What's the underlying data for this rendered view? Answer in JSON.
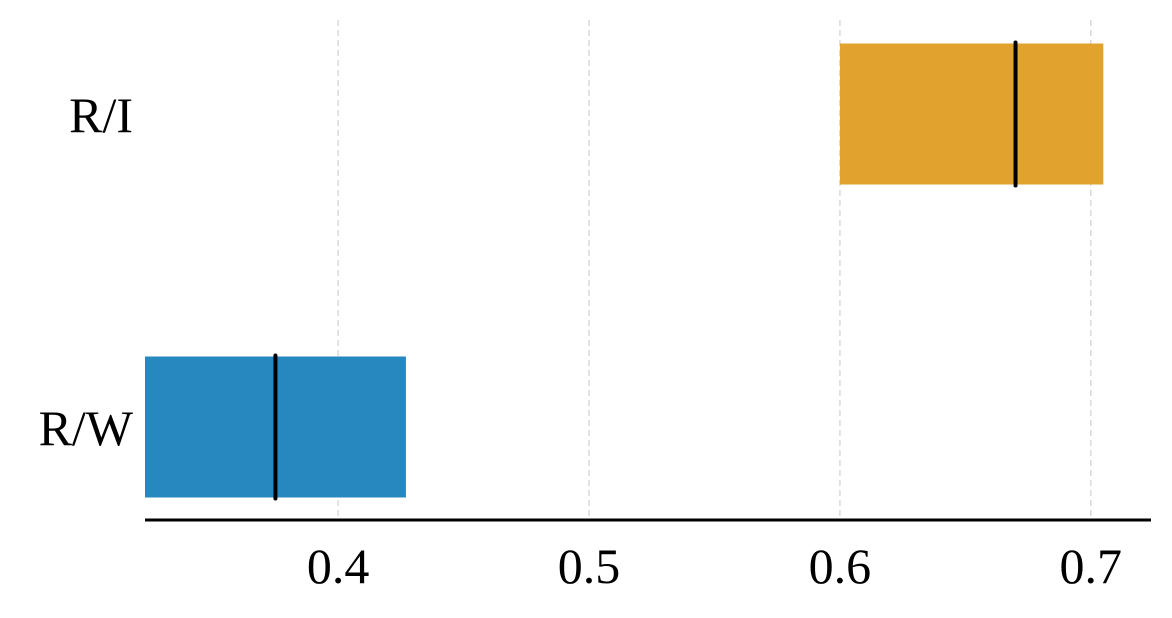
{
  "chart_data": {
    "type": "bar",
    "orientation": "horizontal",
    "variant": "range-with-median",
    "title": "",
    "xlabel": "",
    "ylabel": "",
    "xlim": [
      0.323,
      0.724
    ],
    "xticks": [
      0.4,
      0.5,
      0.6,
      0.7
    ],
    "xtick_labels": [
      "0.4",
      "0.5",
      "0.6",
      "0.7"
    ],
    "grid": "vertical-dashed",
    "legend": "none",
    "categories": [
      "R/I",
      "R/W"
    ],
    "series": [
      {
        "category": "R/I",
        "low": 0.6,
        "high": 0.705,
        "median": 0.67,
        "color": "#E1A22E"
      },
      {
        "category": "R/W",
        "low": 0.323,
        "high": 0.427,
        "median": 0.375,
        "color": "#2788C0"
      }
    ]
  }
}
